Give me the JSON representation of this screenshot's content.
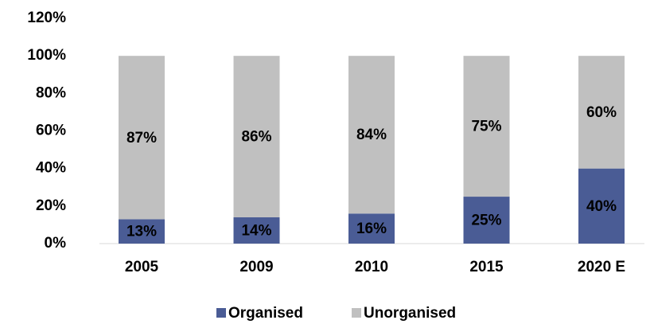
{
  "chart_data": {
    "type": "stacked_bar",
    "categories": [
      "2005",
      "2009",
      "2010",
      "2015",
      "2020 E"
    ],
    "series": [
      {
        "name": "Organised",
        "color": "#4a5c95",
        "values": [
          13,
          14,
          16,
          25,
          40
        ],
        "value_labels": [
          "13%",
          "14%",
          "16%",
          "25%",
          "40%"
        ]
      },
      {
        "name": "Unorganised",
        "color": "#c0c0c0",
        "values": [
          87,
          86,
          84,
          75,
          60
        ],
        "value_labels": [
          "87%",
          "86%",
          "84%",
          "75%",
          "60%"
        ]
      }
    ],
    "ylim": [
      0,
      120
    ],
    "yticks": [
      {
        "value": 0,
        "label": "0%"
      },
      {
        "value": 20,
        "label": "20%"
      },
      {
        "value": 40,
        "label": "40%"
      },
      {
        "value": 60,
        "label": "60%"
      },
      {
        "value": 80,
        "label": "80%"
      },
      {
        "value": 100,
        "label": "100%"
      },
      {
        "value": 120,
        "label": "120%"
      }
    ],
    "grid": false,
    "legend": "bottom"
  }
}
